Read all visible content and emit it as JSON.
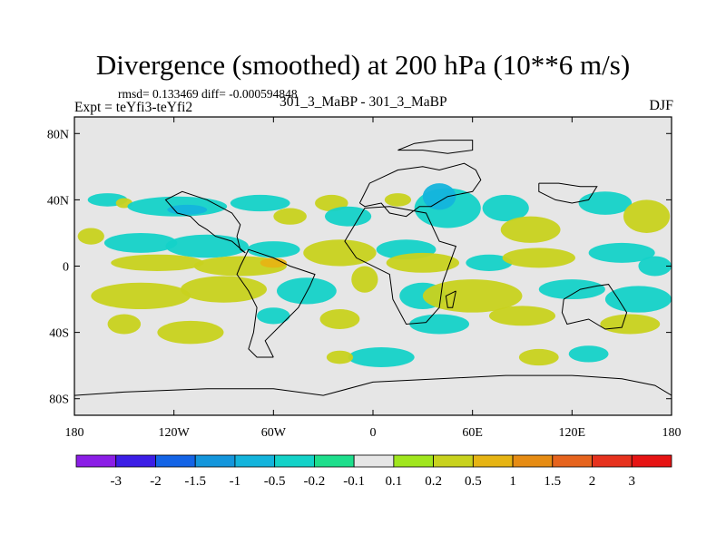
{
  "chart_data": {
    "type": "heatmap",
    "title": "Divergence (smoothed) at 200 hPa (10**6 m/s)",
    "stats": "rmsd= 0.133469 diff= -0.000594848",
    "experiment": "Expt = teYfi3-teYfi2",
    "case": "301_3_MaBP - 301_3_MaBP",
    "season": "DJF",
    "x_axis": {
      "range": [
        -180,
        180
      ],
      "ticks": [
        -180,
        -120,
        -60,
        0,
        60,
        120,
        180
      ],
      "tick_labels": [
        "180",
        "120W",
        "60W",
        "0",
        "60E",
        "120E",
        "180"
      ]
    },
    "y_axis": {
      "range": [
        -90,
        90
      ],
      "ticks": [
        80,
        40,
        0,
        -40,
        -80
      ],
      "tick_labels": [
        "80N",
        "40N",
        "0",
        "40S",
        "80S"
      ]
    },
    "colorbar": {
      "levels": [
        "-3",
        "-2",
        "-1.5",
        "-1",
        "-0.5",
        "-0.2",
        "-0.1",
        "0.1",
        "0.2",
        "0.5",
        "1",
        "1.5",
        "2",
        "3"
      ],
      "colors": [
        "#8b1ee6",
        "#3c1ee6",
        "#1464e6",
        "#1496dc",
        "#14b4dc",
        "#14d2c8",
        "#1ede8c",
        "#e6e6e6",
        "#a0e61e",
        "#c8d21e",
        "#e6b414",
        "#e68c14",
        "#e6641e",
        "#e6321e",
        "#e61414"
      ]
    },
    "blobs": [
      {
        "lon": -160,
        "lat": 40,
        "rx": 12,
        "ry": 4,
        "v": -0.3
      },
      {
        "lon": -150,
        "lat": 38,
        "rx": 5,
        "ry": 3,
        "v": 0.3
      },
      {
        "lon": -118,
        "lat": 36,
        "rx": 30,
        "ry": 6,
        "v": -0.3
      },
      {
        "lon": -112,
        "lat": 34,
        "rx": 12,
        "ry": 3,
        "v": -0.7
      },
      {
        "lon": -68,
        "lat": 38,
        "rx": 18,
        "ry": 5,
        "v": -0.3
      },
      {
        "lon": -50,
        "lat": 30,
        "rx": 10,
        "ry": 5,
        "v": 0.3
      },
      {
        "lon": -25,
        "lat": 38,
        "rx": 10,
        "ry": 5,
        "v": 0.3
      },
      {
        "lon": -15,
        "lat": 30,
        "rx": 14,
        "ry": 6,
        "v": -0.3
      },
      {
        "lon": 15,
        "lat": 40,
        "rx": 8,
        "ry": 4,
        "v": 0.3
      },
      {
        "lon": 45,
        "lat": 35,
        "rx": 20,
        "ry": 12,
        "v": -0.3
      },
      {
        "lon": 40,
        "lat": 42,
        "rx": 10,
        "ry": 8,
        "v": -0.7
      },
      {
        "lon": 80,
        "lat": 35,
        "rx": 14,
        "ry": 8,
        "v": -0.3
      },
      {
        "lon": 95,
        "lat": 22,
        "rx": 18,
        "ry": 8,
        "v": 0.3
      },
      {
        "lon": 140,
        "lat": 38,
        "rx": 16,
        "ry": 7,
        "v": -0.3
      },
      {
        "lon": 165,
        "lat": 30,
        "rx": 14,
        "ry": 10,
        "v": 0.3
      },
      {
        "lon": -170,
        "lat": 18,
        "rx": 8,
        "ry": 5,
        "v": 0.3
      },
      {
        "lon": -140,
        "lat": 14,
        "rx": 22,
        "ry": 6,
        "v": -0.3
      },
      {
        "lon": -100,
        "lat": 12,
        "rx": 25,
        "ry": 7,
        "v": -0.3
      },
      {
        "lon": -60,
        "lat": 10,
        "rx": 16,
        "ry": 5,
        "v": -0.3
      },
      {
        "lon": -130,
        "lat": 2,
        "rx": 28,
        "ry": 5,
        "v": 0.3
      },
      {
        "lon": -80,
        "lat": 0,
        "rx": 28,
        "ry": 6,
        "v": 0.3
      },
      {
        "lon": -60,
        "lat": 2,
        "rx": 8,
        "ry": 3,
        "v": 0.8
      },
      {
        "lon": -20,
        "lat": 8,
        "rx": 22,
        "ry": 8,
        "v": 0.3
      },
      {
        "lon": 20,
        "lat": 10,
        "rx": 18,
        "ry": 6,
        "v": -0.3
      },
      {
        "lon": 30,
        "lat": 2,
        "rx": 22,
        "ry": 6,
        "v": 0.3
      },
      {
        "lon": 70,
        "lat": 2,
        "rx": 14,
        "ry": 5,
        "v": -0.3
      },
      {
        "lon": 100,
        "lat": 5,
        "rx": 22,
        "ry": 6,
        "v": 0.3
      },
      {
        "lon": 150,
        "lat": 8,
        "rx": 20,
        "ry": 6,
        "v": -0.3
      },
      {
        "lon": 170,
        "lat": 0,
        "rx": 10,
        "ry": 6,
        "v": -0.3
      },
      {
        "lon": -140,
        "lat": -18,
        "rx": 30,
        "ry": 8,
        "v": 0.3
      },
      {
        "lon": -90,
        "lat": -14,
        "rx": 26,
        "ry": 8,
        "v": 0.3
      },
      {
        "lon": -40,
        "lat": -15,
        "rx": 18,
        "ry": 8,
        "v": -0.3
      },
      {
        "lon": -5,
        "lat": -8,
        "rx": 8,
        "ry": 8,
        "v": 0.3
      },
      {
        "lon": 30,
        "lat": -18,
        "rx": 14,
        "ry": 8,
        "v": -0.3
      },
      {
        "lon": 60,
        "lat": -18,
        "rx": 30,
        "ry": 10,
        "v": 0.3
      },
      {
        "lon": 120,
        "lat": -14,
        "rx": 20,
        "ry": 6,
        "v": -0.3
      },
      {
        "lon": 160,
        "lat": -20,
        "rx": 20,
        "ry": 8,
        "v": -0.3
      },
      {
        "lon": -150,
        "lat": -35,
        "rx": 10,
        "ry": 6,
        "v": 0.3
      },
      {
        "lon": -110,
        "lat": -40,
        "rx": 20,
        "ry": 7,
        "v": 0.3
      },
      {
        "lon": -60,
        "lat": -30,
        "rx": 10,
        "ry": 5,
        "v": -0.3
      },
      {
        "lon": -20,
        "lat": -32,
        "rx": 12,
        "ry": 6,
        "v": 0.3
      },
      {
        "lon": 40,
        "lat": -35,
        "rx": 18,
        "ry": 6,
        "v": -0.3
      },
      {
        "lon": 90,
        "lat": -30,
        "rx": 20,
        "ry": 6,
        "v": 0.3
      },
      {
        "lon": 155,
        "lat": -35,
        "rx": 18,
        "ry": 6,
        "v": 0.3
      },
      {
        "lon": 5,
        "lat": -55,
        "rx": 20,
        "ry": 6,
        "v": -0.3
      },
      {
        "lon": -20,
        "lat": -55,
        "rx": 8,
        "ry": 4,
        "v": 0.3
      },
      {
        "lon": 100,
        "lat": -55,
        "rx": 12,
        "ry": 5,
        "v": 0.3
      },
      {
        "lon": 130,
        "lat": -53,
        "rx": 12,
        "ry": 5,
        "v": -0.3
      }
    ],
    "coastlines": [
      [
        [
          -8,
          38
        ],
        [
          -2,
          50
        ],
        [
          15,
          58
        ],
        [
          30,
          60
        ],
        [
          40,
          58
        ],
        [
          55,
          62
        ],
        [
          62,
          58
        ],
        [
          65,
          52
        ],
        [
          60,
          45
        ],
        [
          45,
          42
        ],
        [
          35,
          36
        ],
        [
          28,
          36
        ],
        [
          20,
          30
        ],
        [
          10,
          32
        ],
        [
          5,
          38
        ],
        [
          -5,
          36
        ],
        [
          -8,
          38
        ]
      ],
      [
        [
          15,
          70
        ],
        [
          25,
          74
        ],
        [
          40,
          76
        ],
        [
          60,
          76
        ],
        [
          60,
          70
        ],
        [
          45,
          68
        ],
        [
          30,
          70
        ],
        [
          15,
          70
        ]
      ],
      [
        [
          100,
          50
        ],
        [
          112,
          50
        ],
        [
          125,
          48
        ],
        [
          135,
          48
        ],
        [
          130,
          40
        ],
        [
          120,
          38
        ],
        [
          110,
          40
        ],
        [
          100,
          45
        ],
        [
          100,
          50
        ]
      ],
      [
        [
          -5,
          35
        ],
        [
          10,
          36
        ],
        [
          32,
          32
        ],
        [
          40,
          15
        ],
        [
          50,
          12
        ],
        [
          42,
          -10
        ],
        [
          40,
          -25
        ],
        [
          32,
          -34
        ],
        [
          20,
          -35
        ],
        [
          12,
          -20
        ],
        [
          10,
          -5
        ],
        [
          -10,
          5
        ],
        [
          -17,
          15
        ],
        [
          -5,
          35
        ]
      ],
      [
        [
          -60,
          -55
        ],
        [
          -65,
          -45
        ],
        [
          -55,
          -35
        ],
        [
          -45,
          -25
        ],
        [
          -38,
          -12
        ],
        [
          -35,
          -5
        ],
        [
          -50,
          0
        ],
        [
          -60,
          5
        ],
        [
          -75,
          10
        ],
        [
          -80,
          0
        ],
        [
          -82,
          -5
        ],
        [
          -75,
          -15
        ],
        [
          -70,
          -25
        ],
        [
          -72,
          -40
        ],
        [
          -75,
          -50
        ],
        [
          -70,
          -55
        ],
        [
          -60,
          -55
        ]
      ],
      [
        [
          -80,
          10
        ],
        [
          -77,
          8
        ],
        [
          -85,
          15
        ],
        [
          -95,
          18
        ],
        [
          -100,
          22
        ],
        [
          -105,
          25
        ],
        [
          -110,
          30
        ],
        [
          -118,
          32
        ],
        [
          -125,
          40
        ],
        [
          -115,
          45
        ],
        [
          -100,
          40
        ],
        [
          -85,
          32
        ],
        [
          -80,
          25
        ],
        [
          -82,
          18
        ],
        [
          -80,
          10
        ]
      ],
      [
        [
          115,
          -20
        ],
        [
          125,
          -14
        ],
        [
          135,
          -12
        ],
        [
          142,
          -11
        ],
        [
          148,
          -20
        ],
        [
          153,
          -28
        ],
        [
          150,
          -37
        ],
        [
          140,
          -38
        ],
        [
          130,
          -32
        ],
        [
          117,
          -35
        ],
        [
          114,
          -28
        ],
        [
          115,
          -20
        ]
      ],
      [
        [
          50,
          -15
        ],
        [
          48,
          -25
        ],
        [
          45,
          -25
        ],
        [
          44,
          -18
        ],
        [
          50,
          -15
        ]
      ],
      [
        [
          -180,
          -78
        ],
        [
          -150,
          -76
        ],
        [
          -100,
          -74
        ],
        [
          -60,
          -74
        ],
        [
          -30,
          -78
        ],
        [
          0,
          -70
        ],
        [
          40,
          -68
        ],
        [
          80,
          -66
        ],
        [
          120,
          -66
        ],
        [
          150,
          -68
        ],
        [
          170,
          -72
        ],
        [
          180,
          -78
        ],
        [
          180,
          -90
        ],
        [
          -180,
          -90
        ],
        [
          -180,
          -78
        ]
      ]
    ]
  }
}
